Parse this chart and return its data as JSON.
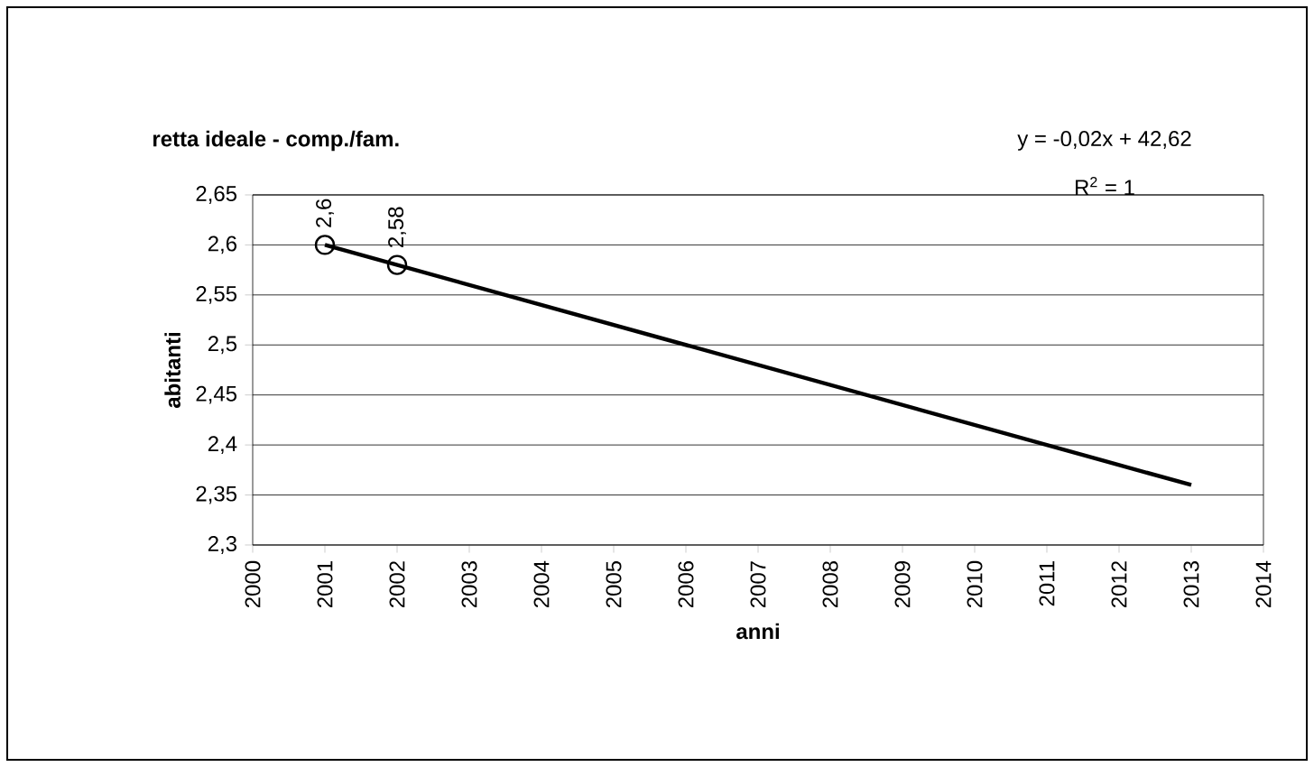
{
  "chart_data": {
    "type": "scatter",
    "title": "retta ideale - comp./fam.",
    "xlabel": "anni",
    "ylabel": "abitanti",
    "annotations": [
      "y = -0,02x + 42,62",
      "R$^{2}$ = 1"
    ],
    "xlim": [
      2000,
      2014
    ],
    "xticks": [
      2000,
      2001,
      2002,
      2003,
      2004,
      2005,
      2006,
      2007,
      2008,
      2009,
      2010,
      2011,
      2012,
      2013,
      2014
    ],
    "ylim": [
      2.3,
      2.65
    ],
    "yticks": [
      {
        "value": 2.3,
        "label": "2,3"
      },
      {
        "value": 2.35,
        "label": "2,35"
      },
      {
        "value": 2.4,
        "label": "2,4"
      },
      {
        "value": 2.45,
        "label": "2,45"
      },
      {
        "value": 2.5,
        "label": "2,5"
      },
      {
        "value": 2.55,
        "label": "2,55"
      },
      {
        "value": 2.6,
        "label": "2,6"
      },
      {
        "value": 2.65,
        "label": "2,65"
      }
    ],
    "grid": "y",
    "series": [
      {
        "type": "line",
        "color": "#000000",
        "marker": "none",
        "x": [
          2001,
          2013
        ],
        "values": [
          2.6,
          2.36
        ]
      },
      {
        "color": "#000000",
        "marker": "circle",
        "x": [
          2001,
          2002
        ],
        "values": [
          2.6,
          2.58
        ],
        "value_labels": [
          "2,6",
          "2,58"
        ]
      }
    ]
  }
}
